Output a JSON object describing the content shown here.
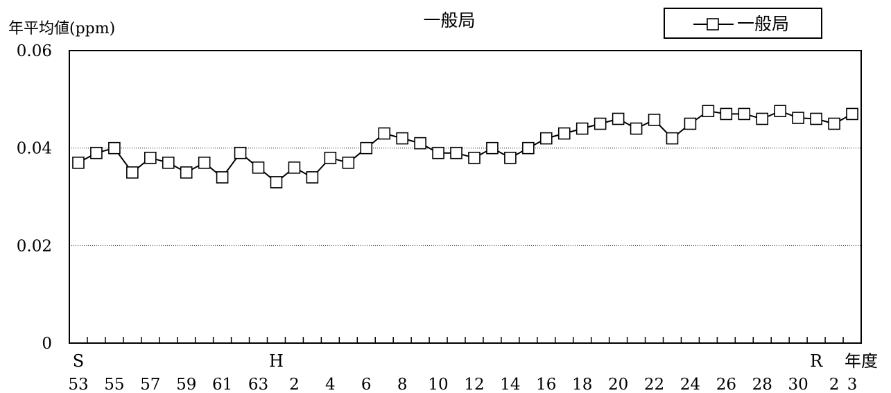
{
  "chart_data": {
    "type": "line",
    "title": "一般局",
    "ylabel": "年平均値(ppm)",
    "xlabel": "年度",
    "ylim": [
      0,
      0.06
    ],
    "y_ticks": [
      {
        "value": 0,
        "label": "0"
      },
      {
        "value": 0.02,
        "label": "0.02"
      },
      {
        "value": 0.04,
        "label": "0.04"
      },
      {
        "value": 0.06,
        "label": "0.06"
      }
    ],
    "gridlines_at": [
      0.02,
      0.04
    ],
    "grid": "horizontal dotted",
    "legend_position": "top-right",
    "era_labels": [
      {
        "label": "S",
        "index": 0
      },
      {
        "label": "H",
        "index": 11
      },
      {
        "label": "R",
        "index": 41
      }
    ],
    "x_tick_labels": [
      {
        "label": "53",
        "index": 0
      },
      {
        "label": "55",
        "index": 2
      },
      {
        "label": "57",
        "index": 4
      },
      {
        "label": "59",
        "index": 6
      },
      {
        "label": "61",
        "index": 8
      },
      {
        "label": "63",
        "index": 10
      },
      {
        "label": "2",
        "index": 12
      },
      {
        "label": "4",
        "index": 14
      },
      {
        "label": "6",
        "index": 16
      },
      {
        "label": "8",
        "index": 18
      },
      {
        "label": "10",
        "index": 20
      },
      {
        "label": "12",
        "index": 22
      },
      {
        "label": "14",
        "index": 24
      },
      {
        "label": "16",
        "index": 26
      },
      {
        "label": "18",
        "index": 28
      },
      {
        "label": "20",
        "index": 30
      },
      {
        "label": "22",
        "index": 32
      },
      {
        "label": "24",
        "index": 34
      },
      {
        "label": "26",
        "index": 36
      },
      {
        "label": "28",
        "index": 38
      },
      {
        "label": "30",
        "index": 40
      },
      {
        "label": "2",
        "index": 42
      },
      {
        "label": "3",
        "index": 43
      }
    ],
    "x": [
      "S53",
      "S54",
      "S55",
      "S56",
      "S57",
      "S58",
      "S59",
      "S60",
      "S61",
      "S62",
      "S63",
      "H1",
      "H2",
      "H3",
      "H4",
      "H5",
      "H6",
      "H7",
      "H8",
      "H9",
      "H10",
      "H11",
      "H12",
      "H13",
      "H14",
      "H15",
      "H16",
      "H17",
      "H18",
      "H19",
      "H20",
      "H21",
      "H22",
      "H23",
      "H24",
      "H25",
      "H26",
      "H27",
      "H28",
      "H29",
      "H30",
      "R1",
      "R2",
      "R3"
    ],
    "series": [
      {
        "name": "一般局",
        "color": "#000000",
        "marker": "open-square",
        "values": [
          0.037,
          0.039,
          0.04,
          0.035,
          0.038,
          0.037,
          0.035,
          0.037,
          0.034,
          0.039,
          0.036,
          0.033,
          0.036,
          0.034,
          0.038,
          0.037,
          0.04,
          0.043,
          0.042,
          0.041,
          0.039,
          0.039,
          0.038,
          0.04,
          0.038,
          0.04,
          0.042,
          0.043,
          0.044,
          0.045,
          0.046,
          0.044,
          0.0458,
          0.042,
          0.045,
          0.0476,
          0.047,
          0.047,
          0.046,
          0.0476,
          0.0462,
          0.046,
          0.045,
          0.047
        ]
      }
    ]
  }
}
